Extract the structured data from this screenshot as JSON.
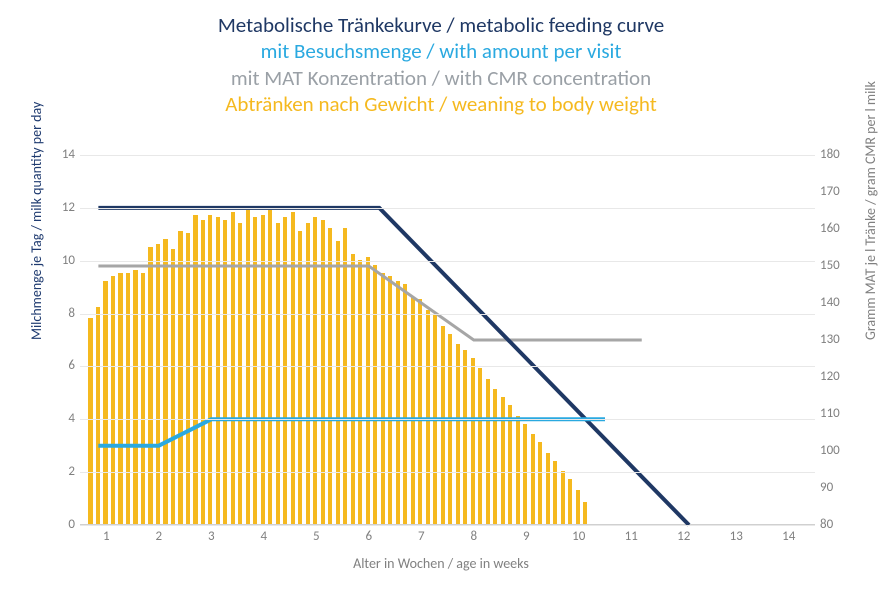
{
  "titles": [
    {
      "text": "Metabolische Tränkekurve / metabolic feeding curve",
      "color": "#1f3864"
    },
    {
      "text": "mit Besuchsmenge / with amount per visit",
      "color": "#2aa9e0"
    },
    {
      "text": "mit MAT Konzentration / with CMR concentration",
      "color": "#9aa0a6"
    },
    {
      "text": "Abtränken nach Gewicht / weaning to body weight",
      "color": "#f5b91f"
    }
  ],
  "x_axis": {
    "label": "Alter in Wochen / age in weeks",
    "min": 0.5,
    "max": 14.5,
    "ticks": [
      1,
      2,
      3,
      4,
      5,
      6,
      7,
      8,
      9,
      10,
      11,
      12,
      13,
      14
    ],
    "label_fontsize": 14,
    "label_color": "#808080",
    "tick_fontsize": 13,
    "tick_color": "#808080"
  },
  "y_left": {
    "label": "Milchmenge je Tag / milk quantity per day",
    "min": 0,
    "max": 14,
    "ticks": [
      0,
      2,
      4,
      6,
      8,
      10,
      12,
      14
    ],
    "label_color": "#1f3b70",
    "label_fontsize": 14
  },
  "y_right": {
    "label": "Gramm MAT je l Tränke / gram CMR per l milk",
    "min": 80,
    "max": 180,
    "ticks": [
      80,
      90,
      100,
      110,
      120,
      130,
      140,
      150,
      160,
      170,
      180
    ],
    "label_color": "#808080",
    "label_fontsize": 14,
    "tick_color": "#808080"
  },
  "grid_color": "#e8e8e8",
  "background_color": "#ffffff",
  "bars": {
    "color": "#f5b91f",
    "width_frac": 0.55,
    "x_start": 0.7,
    "x_step": 0.1428,
    "values": [
      7.8,
      8.2,
      9.2,
      9.4,
      9.5,
      9.5,
      9.6,
      9.5,
      10.5,
      10.6,
      10.8,
      10.4,
      11.1,
      11.0,
      11.7,
      11.5,
      11.7,
      11.6,
      11.5,
      11.8,
      11.4,
      11.9,
      11.6,
      11.7,
      11.9,
      11.4,
      11.6,
      11.8,
      11.1,
      11.4,
      11.6,
      11.5,
      11.2,
      10.7,
      11.2,
      10.2,
      10.0,
      10.1,
      9.8,
      9.5,
      9.4,
      9.2,
      9.1,
      8.6,
      8.5,
      8.1,
      7.9,
      7.5,
      7.2,
      6.8,
      6.6,
      6.3,
      5.9,
      5.5,
      5.1,
      4.8,
      4.5,
      4.1,
      3.8,
      3.4,
      3.1,
      2.7,
      2.4,
      2.0,
      1.7,
      1.3,
      0.85
    ]
  },
  "line_metabolic": {
    "color": "#1f3864",
    "width": 4,
    "axis": "left",
    "points": [
      [
        0.85,
        12
      ],
      [
        6.2,
        12
      ],
      [
        12.1,
        0
      ]
    ]
  },
  "line_visit": {
    "color": "#2aa9e0",
    "width": 4,
    "axis": "left",
    "points": [
      [
        0.85,
        3
      ],
      [
        2.0,
        3
      ],
      [
        3.0,
        4
      ],
      [
        10.5,
        4
      ]
    ]
  },
  "line_cmr": {
    "color": "#a6a6a6",
    "width": 3,
    "axis": "right",
    "points": [
      [
        0.85,
        150
      ],
      [
        6.0,
        150
      ],
      [
        8.0,
        130
      ],
      [
        11.2,
        130
      ]
    ]
  }
}
